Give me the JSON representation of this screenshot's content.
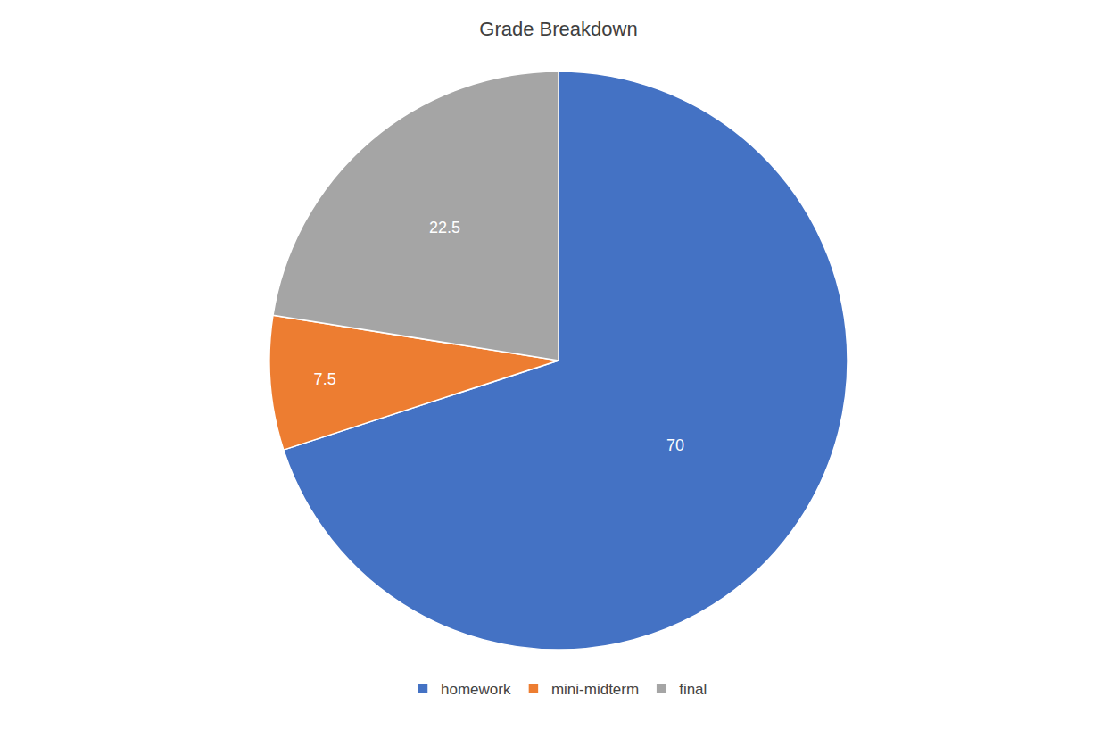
{
  "chart_data": {
    "type": "pie",
    "title": "Grade Breakdown",
    "categories": [
      "homework",
      "mini-midterm",
      "final"
    ],
    "values": [
      70,
      7.5,
      22.5
    ],
    "colors": [
      "#4472C4",
      "#ED7D31",
      "#A5A5A5"
    ],
    "data_labels": true,
    "legend": "bottom"
  }
}
